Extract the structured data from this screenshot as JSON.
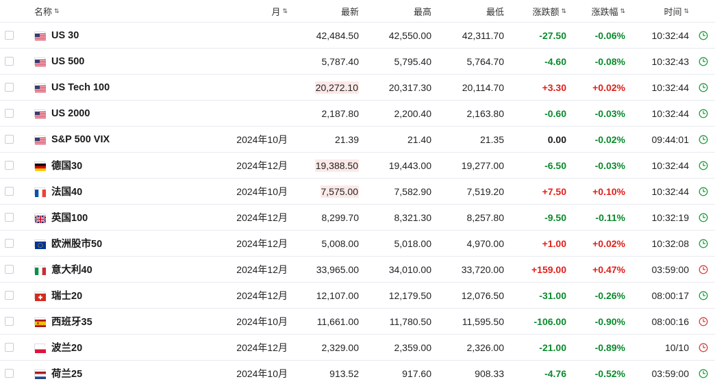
{
  "header": {
    "name": "名称",
    "month": "月",
    "last": "最新",
    "high": "最高",
    "low": "最低",
    "change": "涨跌额",
    "change_pct": "涨跌幅",
    "time": "时间",
    "sort_icon": "sort-arrows-icon"
  },
  "colors": {
    "up": "#e0201b",
    "down": "#0a8a2c",
    "highlight": "#fbe9e7",
    "clock_open": "#1e9e3e",
    "clock_closed": "#d9423a"
  },
  "rows": [
    {
      "flag": "us",
      "name": "US 30",
      "month": "",
      "last": "42,484.50",
      "last_hl": false,
      "high": "42,550.00",
      "low": "42,311.70",
      "chg": "-27.50",
      "pct": "-0.06%",
      "dir": "neg",
      "time": "10:32:44",
      "clock": "open"
    },
    {
      "flag": "us",
      "name": "US 500",
      "month": "",
      "last": "5,787.40",
      "last_hl": false,
      "high": "5,795.40",
      "low": "5,764.70",
      "chg": "-4.60",
      "pct": "-0.08%",
      "dir": "neg",
      "time": "10:32:43",
      "clock": "open"
    },
    {
      "flag": "us",
      "name": "US Tech 100",
      "month": "",
      "last": "20,272.10",
      "last_hl": true,
      "high": "20,317.30",
      "low": "20,114.70",
      "chg": "+3.30",
      "pct": "+0.02%",
      "dir": "pos",
      "time": "10:32:44",
      "clock": "open"
    },
    {
      "flag": "us",
      "name": "US 2000",
      "month": "",
      "last": "2,187.80",
      "last_hl": false,
      "high": "2,200.40",
      "low": "2,163.80",
      "chg": "-0.60",
      "pct": "-0.03%",
      "dir": "neg",
      "time": "10:32:44",
      "clock": "open"
    },
    {
      "flag": "us",
      "name": "S&P 500 VIX",
      "month": "2024年10月",
      "last": "21.39",
      "last_hl": false,
      "high": "21.40",
      "low": "21.35",
      "chg": "0.00",
      "chg_dir": "neu",
      "pct": "-0.02%",
      "dir": "neg",
      "time": "09:44:01",
      "clock": "open"
    },
    {
      "flag": "de",
      "name": "德国30",
      "month": "2024年12月",
      "last": "19,388.50",
      "last_hl": true,
      "high": "19,443.00",
      "low": "19,277.00",
      "chg": "-6.50",
      "pct": "-0.03%",
      "dir": "neg",
      "time": "10:32:44",
      "clock": "open"
    },
    {
      "flag": "fr",
      "name": "法国40",
      "month": "2024年10月",
      "last": "7,575.00",
      "last_hl": true,
      "high": "7,582.90",
      "low": "7,519.20",
      "chg": "+7.50",
      "pct": "+0.10%",
      "dir": "pos",
      "time": "10:32:44",
      "clock": "open"
    },
    {
      "flag": "gb",
      "name": "英国100",
      "month": "2024年12月",
      "last": "8,299.70",
      "last_hl": false,
      "high": "8,321.30",
      "low": "8,257.80",
      "chg": "-9.50",
      "pct": "-0.11%",
      "dir": "neg",
      "time": "10:32:19",
      "clock": "open"
    },
    {
      "flag": "eu",
      "name": "欧洲股市50",
      "month": "2024年12月",
      "last": "5,008.00",
      "last_hl": false,
      "high": "5,018.00",
      "low": "4,970.00",
      "chg": "+1.00",
      "pct": "+0.02%",
      "dir": "pos",
      "time": "10:32:08",
      "clock": "open"
    },
    {
      "flag": "it",
      "name": "意大利40",
      "month": "2024年12月",
      "last": "33,965.00",
      "last_hl": false,
      "high": "34,010.00",
      "low": "33,720.00",
      "chg": "+159.00",
      "pct": "+0.47%",
      "dir": "pos",
      "time": "03:59:00",
      "clock": "closed"
    },
    {
      "flag": "ch",
      "name": "瑞士20",
      "month": "2024年12月",
      "last": "12,107.00",
      "last_hl": false,
      "high": "12,179.50",
      "low": "12,076.50",
      "chg": "-31.00",
      "pct": "-0.26%",
      "dir": "neg",
      "time": "08:00:17",
      "clock": "open"
    },
    {
      "flag": "es",
      "name": "西班牙35",
      "month": "2024年10月",
      "last": "11,661.00",
      "last_hl": false,
      "high": "11,780.50",
      "low": "11,595.50",
      "chg": "-106.00",
      "pct": "-0.90%",
      "dir": "neg",
      "time": "08:00:16",
      "clock": "closed"
    },
    {
      "flag": "pl",
      "name": "波兰20",
      "month": "2024年12月",
      "last": "2,329.00",
      "last_hl": false,
      "high": "2,359.00",
      "low": "2,326.00",
      "chg": "-21.00",
      "pct": "-0.89%",
      "dir": "neg",
      "time": "10/10",
      "clock": "closed"
    },
    {
      "flag": "nl",
      "name": "荷兰25",
      "month": "2024年10月",
      "last": "913.52",
      "last_hl": false,
      "high": "917.60",
      "low": "908.33",
      "chg": "-4.76",
      "pct": "-0.52%",
      "dir": "neg",
      "time": "03:59:00",
      "clock": "open"
    }
  ]
}
